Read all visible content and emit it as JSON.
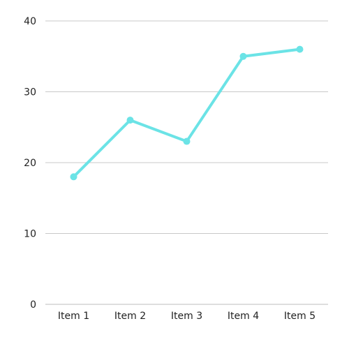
{
  "chart_data": {
    "type": "line",
    "categories": [
      "Item 1",
      "Item 2",
      "Item 3",
      "Item 4",
      "Item 5"
    ],
    "series": [
      {
        "values": [
          18,
          26,
          23,
          35,
          36
        ]
      }
    ],
    "ylim": [
      0,
      40
    ],
    "yticks": [
      "0",
      "10",
      "20",
      "30",
      "40"
    ],
    "grid": true,
    "colors": {
      "line": "#6be3e6"
    }
  }
}
